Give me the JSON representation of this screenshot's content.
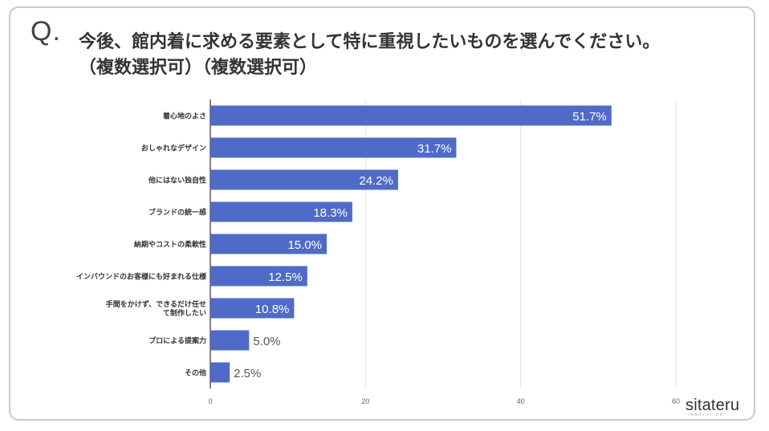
{
  "question": {
    "mark": "Q.",
    "line1": "今後、館内着に求める要素として特に重視したいものを選んでください。",
    "line2": "（複数選択可）（複数選択可）"
  },
  "logo": {
    "name": "sitateru",
    "sub": "INNOVATION"
  },
  "chart_data": {
    "type": "bar",
    "orientation": "horizontal",
    "categories": [
      "着心地のよさ",
      "おしゃれなデザイン",
      "他にはない独自性",
      "ブランドの統一感",
      "納期やコストの柔軟性",
      "インバウンドのお客様にも好まれる仕様",
      "手間をかけず、できるだけ任せて制作したい",
      "プロによる提案力",
      "その他"
    ],
    "category_lines": [
      [
        "着心地のよさ"
      ],
      [
        "おしゃれなデザイン"
      ],
      [
        "他にはない独自性"
      ],
      [
        "ブランドの統一感"
      ],
      [
        "納期やコストの柔軟性"
      ],
      [
        "インバウンドのお客様にも好まれる仕様"
      ],
      [
        "手間をかけず、できるだけ任せ",
        "て制作したい"
      ],
      [
        "プロによる提案力"
      ],
      [
        "その他"
      ]
    ],
    "values": [
      51.7,
      31.7,
      24.2,
      18.3,
      15.0,
      12.5,
      10.8,
      5.0,
      2.5
    ],
    "value_labels": [
      "51.7%",
      "31.7%",
      "24.2%",
      "18.3%",
      "15.0%",
      "12.5%",
      "10.8%",
      "5.0%",
      "2.5%"
    ],
    "xlim": [
      0,
      60
    ],
    "xticks": [
      0,
      20,
      40,
      60
    ],
    "xtick_labels": [
      "0",
      "20",
      "40",
      "60"
    ],
    "grid": true,
    "bar_color": "#4f6bc7",
    "label_inside_color": "#ffffff",
    "label_outside_color": "#555555"
  }
}
